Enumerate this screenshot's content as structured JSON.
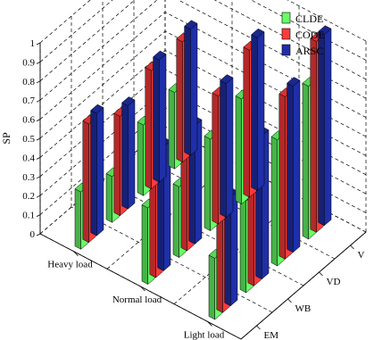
{
  "chart_data": {
    "type": "bar",
    "subtype": "3d-grouped",
    "title": "",
    "zlabel": "SP",
    "zlim": [
      0,
      1
    ],
    "z_ticks": [
      "0",
      "0.1",
      "0.2",
      "0.3",
      "0.4",
      "0.5",
      "0.6",
      "0.7",
      "0.8",
      "0.9",
      "1"
    ],
    "load_categories": [
      "Light load",
      "Normal load",
      "Heavy load"
    ],
    "mobility_categories": [
      "EM",
      "WB",
      "VD",
      "V"
    ],
    "grid": true,
    "legend_position": "top-right",
    "series": [
      {
        "name": "CLDE",
        "color": "#66ff66",
        "values": [
          [
            0.32,
            0.48,
            0.66,
            0.8
          ],
          [
            0.4,
            0.37,
            0.48,
            0.55
          ],
          [
            0.3,
            0.24,
            0.37,
            0.4
          ]
        ]
      },
      {
        "name": "CODE",
        "color": "#ff3b3b",
        "values": [
          [
            0.55,
            0.72,
            0.85,
            1.0
          ],
          [
            0.63,
            0.6,
            0.67,
            0.77
          ],
          [
            0.62,
            0.52,
            0.62,
            0.63
          ]
        ]
      },
      {
        "name": "ARSC",
        "color": "#1f2fa8",
        "values": [
          [
            0.57,
            0.75,
            0.87,
            1.0
          ],
          [
            0.65,
            0.62,
            0.7,
            0.8
          ],
          [
            0.64,
            0.54,
            0.64,
            0.66
          ]
        ]
      }
    ]
  }
}
